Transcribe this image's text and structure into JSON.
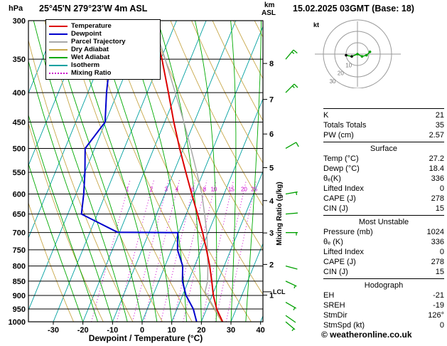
{
  "header": {
    "pressure_unit": "hPa",
    "km_label": "km",
    "asl_label": "ASL"
  },
  "chart_data": {
    "type": "skewt-logp-sounding",
    "title": "25°45'N 279°23'W 4m ASL",
    "datetime": "15.02.2025 03GMT (Base: 18)",
    "labels": {
      "pressure_unit": "hPa",
      "km": "km",
      "asl": "ASL",
      "xlabel": "Dewpoint / Temperature (°C)",
      "mixing_ratio": "Mixing Ratio (g/kg)",
      "lcl": "LCL",
      "hodograph_kt": "kt"
    },
    "pressure_ticks": [
      300,
      350,
      400,
      450,
      500,
      550,
      600,
      650,
      700,
      750,
      800,
      850,
      900,
      950,
      1000
    ],
    "temp_ticks": [
      -30,
      -20,
      -10,
      0,
      10,
      20,
      30,
      40
    ],
    "pressure_range_hpa": [
      300,
      1000
    ],
    "temperature_profile": [
      {
        "p": 1000,
        "t": 27.2
      },
      {
        "p": 950,
        "t": 23.4
      },
      {
        "p": 900,
        "t": 20.4
      },
      {
        "p": 850,
        "t": 17.9
      },
      {
        "p": 800,
        "t": 15.1
      },
      {
        "p": 750,
        "t": 11.8
      },
      {
        "p": 700,
        "t": 8.1
      },
      {
        "p": 650,
        "t": 3.8
      },
      {
        "p": 600,
        "t": -0.9
      },
      {
        "p": 550,
        "t": -5.9
      },
      {
        "p": 500,
        "t": -11.3
      },
      {
        "p": 450,
        "t": -16.9
      },
      {
        "p": 400,
        "t": -22.8
      },
      {
        "p": 350,
        "t": -29.6
      },
      {
        "p": 300,
        "t": -38.0
      }
    ],
    "dewpoint_profile": [
      {
        "p": 1000,
        "t": 18.4
      },
      {
        "p": 950,
        "t": 15.5
      },
      {
        "p": 900,
        "t": 11.2
      },
      {
        "p": 850,
        "t": 8.0
      },
      {
        "p": 800,
        "t": 6.0
      },
      {
        "p": 750,
        "t": 2.0
      },
      {
        "p": 700,
        "t": -0.3
      },
      {
        "p": 699,
        "t": -20.7
      },
      {
        "p": 650,
        "t": -35.4
      },
      {
        "p": 600,
        "t": -37.4
      },
      {
        "p": 550,
        "t": -40.0
      },
      {
        "p": 500,
        "t": -43.2
      },
      {
        "p": 450,
        "t": -40.1
      },
      {
        "p": 400,
        "t": -43.7
      },
      {
        "p": 350,
        "t": -47.1
      },
      {
        "p": 300,
        "t": -51.2
      }
    ],
    "parcel_profile": [
      {
        "p": 1000,
        "t": 27.2
      },
      {
        "p": 950,
        "t": 22.8
      },
      {
        "p": 900,
        "t": 18.3
      },
      {
        "p": 887,
        "t": 17.1
      },
      {
        "p": 850,
        "t": 16.5
      },
      {
        "p": 800,
        "t": 14.5
      },
      {
        "p": 750,
        "t": 12.1
      },
      {
        "p": 700,
        "t": 9.5
      },
      {
        "p": 650,
        "t": 6.2
      },
      {
        "p": 600,
        "t": 2.5
      },
      {
        "p": 550,
        "t": -2.2
      },
      {
        "p": 500,
        "t": -7.5
      },
      {
        "p": 450,
        "t": -13.5
      },
      {
        "p": 400,
        "t": -20.5
      },
      {
        "p": 350,
        "t": -28.5
      },
      {
        "p": 300,
        "t": -38.0
      }
    ],
    "isotherms_c": {
      "min": -100,
      "max": 40,
      "step": 10
    },
    "dry_adiabats_K": {
      "min": 250,
      "max": 440,
      "step": 10
    },
    "wet_adiabats_C": {
      "min": -20,
      "max": 35,
      "step": 5
    },
    "mixing_ratio_gkg": [
      1,
      2,
      3,
      4,
      6,
      8,
      10,
      15,
      20,
      25
    ],
    "km_ticks": [
      {
        "km": 8,
        "p": 356
      },
      {
        "km": 7,
        "p": 411
      },
      {
        "km": 6,
        "p": 472
      },
      {
        "km": 5,
        "p": 540
      },
      {
        "km": 4,
        "p": 616
      },
      {
        "km": 3,
        "p": 701
      },
      {
        "km": 2,
        "p": 795
      },
      {
        "km": 1,
        "p": 899
      }
    ],
    "lcl_p": 887,
    "wind_barbs": [
      {
        "p": 350,
        "dir": 40,
        "spd": 15
      },
      {
        "p": 400,
        "dir": 45,
        "spd": 15
      },
      {
        "p": 500,
        "dir": 60,
        "spd": 10
      },
      {
        "p": 600,
        "dir": 80,
        "spd": 5
      },
      {
        "p": 650,
        "dir": 85,
        "spd": 3
      },
      {
        "p": 700,
        "dir": 90,
        "spd": 5
      },
      {
        "p": 800,
        "dir": 105,
        "spd": 3
      },
      {
        "p": 850,
        "dir": 115,
        "spd": 5
      },
      {
        "p": 925,
        "dir": 120,
        "spd": 5
      },
      {
        "p": 975,
        "dir": 125,
        "spd": 3
      },
      {
        "p": 1000,
        "dir": 130,
        "spd": 5
      }
    ],
    "hodograph": {
      "rings_kt": [
        10,
        20,
        30
      ],
      "trace_kt": [
        [
          -10,
          -1
        ],
        [
          -5,
          -2
        ],
        [
          0,
          0
        ],
        [
          4,
          -2
        ],
        [
          8,
          -1
        ],
        [
          11,
          2
        ]
      ]
    },
    "legend": [
      {
        "label": "Temperature",
        "color": "#dd0000",
        "dash": "solid"
      },
      {
        "label": "Dewpoint",
        "color": "#0000cc",
        "dash": "solid"
      },
      {
        "label": "Parcel Trajectory",
        "color": "#a8a8a8",
        "dash": "solid"
      },
      {
        "label": "Dry Adiabat",
        "color": "#c8a84a",
        "dash": "solid"
      },
      {
        "label": "Wet Adiabat",
        "color": "#00aa00",
        "dash": "solid"
      },
      {
        "label": "Isotherm",
        "color": "#00a0a0",
        "dash": "solid"
      },
      {
        "label": "Mixing Ratio",
        "color": "#cc00cc",
        "dash": "dotted"
      }
    ],
    "colors": {
      "temperature": "#dd0000",
      "dewpoint": "#0000cc",
      "parcel": "#a8a8a8",
      "dry_adiabat": "#c8a84a",
      "wet_adiabat": "#00aa00",
      "isotherm": "#00a0a0",
      "mixing_ratio": "#cc00cc",
      "wind_barb": "#00a000",
      "grid": "#000000"
    }
  },
  "panel": {
    "indices": [
      {
        "label": "K",
        "value": "21"
      },
      {
        "label": "Totals Totals",
        "value": "35"
      },
      {
        "label": "PW (cm)",
        "value": "2.57"
      }
    ],
    "sections": [
      {
        "title": "Surface",
        "rows": [
          [
            "Temp (°C)",
            "27.2"
          ],
          [
            "Dewp (°C)",
            "18.4"
          ],
          [
            "θₑ(K)",
            "336"
          ],
          [
            "Lifted Index",
            "0"
          ],
          [
            "CAPE (J)",
            "278"
          ],
          [
            "CIN (J)",
            "15"
          ]
        ]
      },
      {
        "title": "Most Unstable",
        "rows": [
          [
            "Pressure (mb)",
            "1024"
          ],
          [
            "θₑ (K)",
            "336"
          ],
          [
            "Lifted Index",
            "0"
          ],
          [
            "CAPE (J)",
            "278"
          ],
          [
            "CIN (J)",
            "15"
          ]
        ]
      },
      {
        "title": "Hodograph",
        "rows": [
          [
            "EH",
            "-21"
          ],
          [
            "SREH",
            "-19"
          ],
          [
            "StmDir",
            "126°"
          ],
          [
            "StmSpd (kt)",
            "0"
          ]
        ]
      }
    ]
  },
  "footer": {
    "copyright": "© weatheronline.co.uk"
  }
}
